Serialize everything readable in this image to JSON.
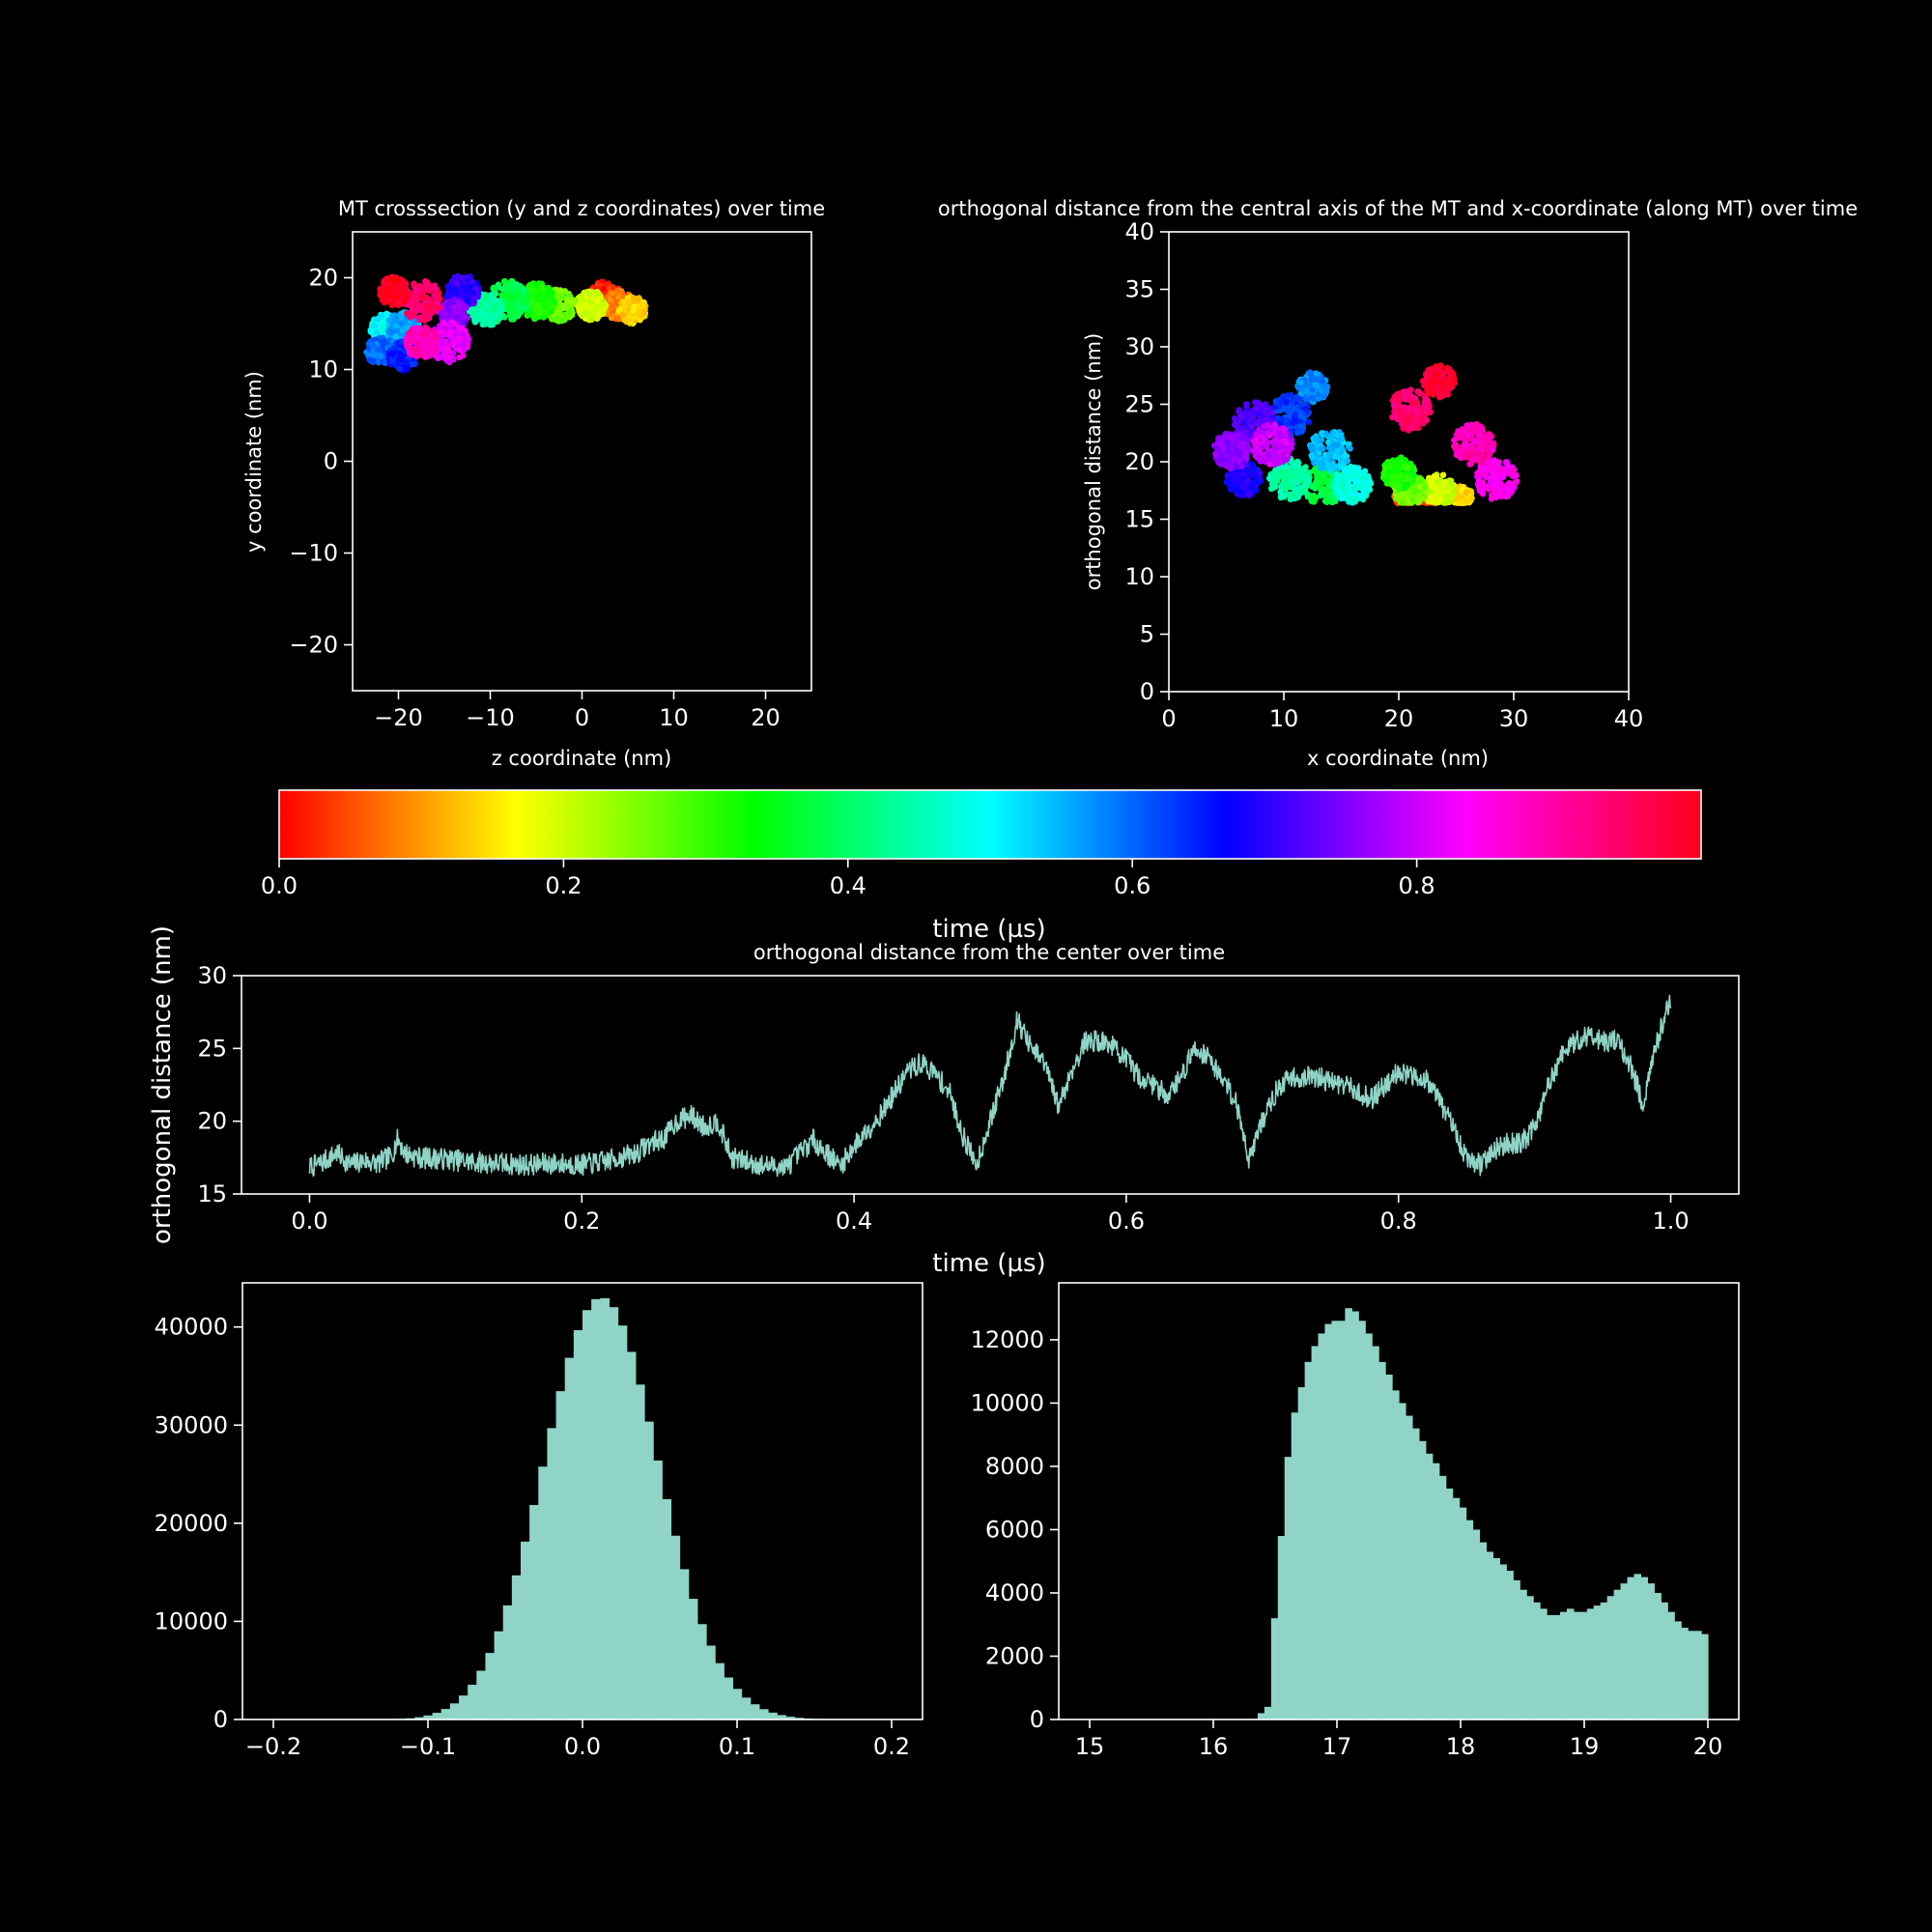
{
  "figure": {
    "background": "#000000",
    "foreground": "#ffffff",
    "accent": "#8fd4c6"
  },
  "colorbar": {
    "label": "time (µs)",
    "range": [
      0,
      1
    ],
    "ticks": [
      "0.0",
      "0.2",
      "0.4",
      "0.6",
      "0.8"
    ],
    "tick_values": [
      0,
      0.2,
      0.4,
      0.6,
      0.8
    ],
    "colormap": "hsv"
  },
  "chart_data": [
    {
      "id": "crosssection",
      "type": "scatter",
      "title": "MT crosssection (y and z coordinates) over time",
      "xlabel": "z coordinate (nm)",
      "ylabel": "y coordinate (nm)",
      "xlim": [
        -25,
        25
      ],
      "ylim": [
        -25,
        25
      ],
      "xticks": [
        "−20",
        "−10",
        "0",
        "10",
        "20"
      ],
      "xtick_values": [
        -20,
        -10,
        0,
        10,
        20
      ],
      "yticks": [
        "−20",
        "−10",
        "0",
        "10",
        "20"
      ],
      "ytick_values": [
        -20,
        -10,
        0,
        10,
        20
      ],
      "color_by": "time",
      "clusters": [
        {
          "t": 0.02,
          "z": 2.5,
          "y": 17.8,
          "r": 1.8
        },
        {
          "t": 0.08,
          "z": 4.0,
          "y": 17.0,
          "r": 1.6
        },
        {
          "t": 0.14,
          "z": 5.5,
          "y": 16.5,
          "r": 1.5
        },
        {
          "t": 0.2,
          "z": 1.0,
          "y": 17.0,
          "r": 1.6
        },
        {
          "t": 0.26,
          "z": -2.5,
          "y": 17.0,
          "r": 1.8
        },
        {
          "t": 0.32,
          "z": -5.0,
          "y": 17.5,
          "r": 2.0
        },
        {
          "t": 0.38,
          "z": -8.0,
          "y": 17.5,
          "r": 2.2
        },
        {
          "t": 0.44,
          "z": -10.5,
          "y": 16.5,
          "r": 1.8
        },
        {
          "t": 0.5,
          "z": -21.5,
          "y": 14.5,
          "r": 1.6
        },
        {
          "t": 0.56,
          "z": -19.5,
          "y": 14.5,
          "r": 1.8
        },
        {
          "t": 0.6,
          "z": -22.0,
          "y": 12.0,
          "r": 1.5
        },
        {
          "t": 0.65,
          "z": -19.5,
          "y": 11.5,
          "r": 1.6
        },
        {
          "t": 0.7,
          "z": -13.0,
          "y": 18.5,
          "r": 1.8
        },
        {
          "t": 0.76,
          "z": -14.0,
          "y": 16.0,
          "r": 1.6
        },
        {
          "t": 0.82,
          "z": -14.5,
          "y": 13.0,
          "r": 2.2
        },
        {
          "t": 0.88,
          "z": -17.5,
          "y": 13.0,
          "r": 1.8
        },
        {
          "t": 0.93,
          "z": -17.5,
          "y": 17.5,
          "r": 2.2
        },
        {
          "t": 0.98,
          "z": -20.5,
          "y": 18.5,
          "r": 1.6
        }
      ]
    },
    {
      "id": "orthogonal-vs-x",
      "type": "scatter",
      "title": "orthogonal distance from the central axis of the MT and x-coordinate (along MT) over time",
      "xlabel": "x coordinate (nm)",
      "ylabel": "orthogonal distance (nm)",
      "xlim": [
        0,
        40
      ],
      "ylim": [
        0,
        40
      ],
      "xticks": [
        "0",
        "10",
        "20",
        "30",
        "40"
      ],
      "xtick_values": [
        0,
        10,
        20,
        30,
        40
      ],
      "yticks": [
        "0",
        "5",
        "10",
        "15",
        "20",
        "25",
        "30",
        "35",
        "40"
      ],
      "ytick_values": [
        0,
        5,
        10,
        15,
        20,
        25,
        30,
        35,
        40
      ],
      "color_by": "time",
      "clusters": [
        {
          "t": 0.02,
          "x": 22.5,
          "d": 17.0,
          "r": 1.0
        },
        {
          "t": 0.06,
          "x": 20.5,
          "d": 17.0,
          "r": 0.9
        },
        {
          "t": 0.14,
          "x": 25.5,
          "d": 17.0,
          "r": 0.9
        },
        {
          "t": 0.2,
          "x": 23.5,
          "d": 17.5,
          "r": 1.4
        },
        {
          "t": 0.26,
          "x": 21.0,
          "d": 17.5,
          "r": 1.4
        },
        {
          "t": 0.32,
          "x": 20.0,
          "d": 19.0,
          "r": 1.4
        },
        {
          "t": 0.38,
          "x": 13.5,
          "d": 18.0,
          "r": 1.8
        },
        {
          "t": 0.44,
          "x": 10.5,
          "d": 18.5,
          "r": 1.8
        },
        {
          "t": 0.48,
          "x": 16.0,
          "d": 18.0,
          "r": 1.6
        },
        {
          "t": 0.54,
          "x": 14.0,
          "d": 21.0,
          "r": 1.8
        },
        {
          "t": 0.58,
          "x": 12.5,
          "d": 26.5,
          "r": 1.3
        },
        {
          "t": 0.63,
          "x": 10.5,
          "d": 24.0,
          "r": 1.8
        },
        {
          "t": 0.68,
          "x": 6.5,
          "d": 18.5,
          "r": 1.5
        },
        {
          "t": 0.72,
          "x": 7.5,
          "d": 23.5,
          "r": 1.8
        },
        {
          "t": 0.76,
          "x": 5.5,
          "d": 21.0,
          "r": 1.6
        },
        {
          "t": 0.8,
          "x": 9.0,
          "d": 21.5,
          "r": 1.8
        },
        {
          "t": 0.84,
          "x": 28.5,
          "d": 18.5,
          "r": 1.8
        },
        {
          "t": 0.88,
          "x": 26.5,
          "d": 21.5,
          "r": 1.8
        },
        {
          "t": 0.93,
          "x": 21.0,
          "d": 24.5,
          "r": 1.8
        },
        {
          "t": 0.97,
          "x": 23.5,
          "d": 27.0,
          "r": 1.4
        }
      ]
    },
    {
      "id": "distance-vs-time",
      "type": "line",
      "title": "orthogonal distance from the center over time",
      "xlabel": "time (µs)",
      "ylabel": "orthogonal distance (nm)",
      "xlim": [
        -0.05,
        1.05
      ],
      "ylim": [
        15,
        30
      ],
      "xticks": [
        "0.0",
        "0.2",
        "0.4",
        "0.6",
        "0.8",
        "1.0"
      ],
      "xtick_values": [
        0,
        0.2,
        0.4,
        0.6,
        0.8,
        1.0
      ],
      "yticks": [
        "15",
        "20",
        "25",
        "30"
      ],
      "ytick_values": [
        15,
        20,
        25,
        30
      ],
      "x": [
        0.0,
        0.01,
        0.02,
        0.03,
        0.04,
        0.05,
        0.06,
        0.065,
        0.07,
        0.08,
        0.1,
        0.12,
        0.14,
        0.16,
        0.18,
        0.2,
        0.22,
        0.24,
        0.25,
        0.26,
        0.27,
        0.28,
        0.29,
        0.3,
        0.31,
        0.33,
        0.35,
        0.36,
        0.37,
        0.38,
        0.39,
        0.4,
        0.42,
        0.43,
        0.44,
        0.45,
        0.46,
        0.47,
        0.48,
        0.49,
        0.5,
        0.51,
        0.52,
        0.53,
        0.54,
        0.55,
        0.56,
        0.57,
        0.58,
        0.59,
        0.6,
        0.61,
        0.62,
        0.63,
        0.64,
        0.65,
        0.66,
        0.67,
        0.68,
        0.69,
        0.7,
        0.71,
        0.72,
        0.74,
        0.76,
        0.78,
        0.8,
        0.81,
        0.82,
        0.83,
        0.84,
        0.85,
        0.86,
        0.87,
        0.88,
        0.89,
        0.9,
        0.91,
        0.92,
        0.93,
        0.94,
        0.95,
        0.96,
        0.97,
        0.98,
        0.99,
        1.0
      ],
      "y": [
        16.8,
        17.2,
        17.8,
        17.0,
        17.3,
        17.1,
        17.6,
        18.8,
        17.8,
        17.5,
        17.4,
        17.2,
        17.1,
        17.0,
        17.1,
        17.0,
        17.3,
        17.8,
        18.5,
        18.8,
        20.0,
        20.4,
        19.6,
        20.0,
        17.5,
        17.0,
        16.8,
        17.8,
        18.7,
        17.8,
        16.9,
        18.3,
        20.5,
        22.0,
        23.5,
        24.0,
        23.2,
        22.0,
        19.0,
        17.0,
        20.0,
        23.0,
        27.0,
        25.0,
        24.0,
        21.0,
        23.5,
        25.5,
        25.5,
        25.2,
        24.2,
        23.0,
        22.5,
        21.8,
        23.0,
        25.0,
        24.5,
        23.0,
        21.5,
        17.5,
        20.0,
        22.0,
        23.0,
        23.0,
        22.5,
        21.5,
        23.5,
        23.0,
        23.0,
        21.5,
        19.5,
        17.5,
        17.0,
        18.0,
        18.5,
        18.5,
        19.5,
        22.5,
        24.5,
        25.5,
        26.0,
        25.5,
        25.5,
        24.0,
        21.0,
        25.5,
        28.5
      ]
    },
    {
      "id": "hist-left",
      "type": "bar",
      "title": "",
      "xlabel": "",
      "ylabel": "",
      "xlim": [
        -0.22,
        0.22
      ],
      "ylim": [
        0,
        44500
      ],
      "xticks": [
        "−0.2",
        "−0.1",
        "0.0",
        "0.1",
        "0.2"
      ],
      "xtick_values": [
        -0.2,
        -0.1,
        0,
        0.1,
        0.2
      ],
      "yticks": [
        "0",
        "10000",
        "20000",
        "30000",
        "40000"
      ],
      "ytick_values": [
        0,
        10000,
        20000,
        30000,
        40000
      ],
      "bin_range": [
        -0.2,
        0.2
      ],
      "values": [
        0,
        0,
        0,
        0,
        0,
        0,
        0,
        0,
        0,
        0,
        0,
        0,
        0,
        20,
        60,
        120,
        230,
        410,
        680,
        1070,
        1640,
        2440,
        3540,
        4970,
        6780,
        8990,
        11630,
        14690,
        18130,
        21860,
        25770,
        29700,
        33460,
        36860,
        39680,
        41720,
        42840,
        42940,
        42020,
        40150,
        37470,
        34130,
        30360,
        26390,
        22460,
        18730,
        15320,
        12300,
        9720,
        7530,
        5740,
        4280,
        3120,
        2230,
        1550,
        1050,
        700,
        450,
        280,
        170,
        100,
        60,
        30,
        20,
        10,
        0,
        0,
        0,
        0,
        0
      ]
    },
    {
      "id": "hist-right",
      "type": "bar",
      "title": "",
      "xlabel": "",
      "ylabel": "",
      "xlim": [
        14.75,
        20.25
      ],
      "ylim": [
        0,
        13800
      ],
      "xticks": [
        "15",
        "16",
        "17",
        "18",
        "19",
        "20"
      ],
      "xtick_values": [
        15,
        16,
        17,
        18,
        19,
        20
      ],
      "yticks": [
        "0",
        "2000",
        "4000",
        "6000",
        "8000",
        "10000",
        "12000"
      ],
      "ytick_values": [
        0,
        2000,
        4000,
        6000,
        8000,
        10000,
        12000
      ],
      "bin_range": [
        15,
        20
      ],
      "values": [
        0,
        0,
        0,
        0,
        0,
        0,
        0,
        0,
        0,
        0,
        0,
        0,
        0,
        0,
        0,
        0,
        0,
        0,
        0,
        0,
        0,
        0,
        0,
        0,
        0,
        200,
        400,
        3200,
        5800,
        8300,
        9700,
        10500,
        11300,
        11800,
        12200,
        12500,
        12600,
        12600,
        13000,
        12900,
        12600,
        12200,
        11800,
        11300,
        10900,
        10400,
        10000,
        9600,
        9200,
        8800,
        8400,
        8100,
        7700,
        7300,
        7000,
        6700,
        6300,
        6000,
        5600,
        5300,
        5100,
        4900,
        4700,
        4400,
        4100,
        3900,
        3700,
        3500,
        3300,
        3300,
        3400,
        3500,
        3400,
        3400,
        3500,
        3600,
        3700,
        3900,
        4100,
        4300,
        4500,
        4600,
        4500,
        4300,
        4000,
        3700,
        3400,
        3100,
        2900,
        2800,
        2800,
        2700
      ]
    }
  ]
}
